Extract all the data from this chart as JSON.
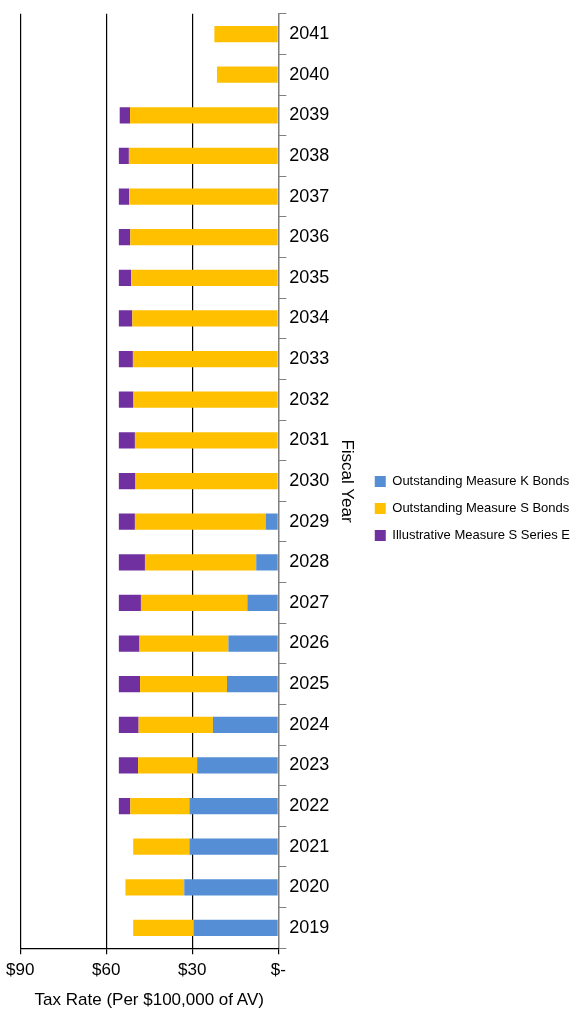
{
  "chart_data": {
    "type": "bar",
    "stacked": true,
    "orientation": "horizontal",
    "xlabel": "Tax Rate (Per $100,000 of AV)",
    "ylabel": "Fiscal Year",
    "categories": [
      "2041",
      "2040",
      "2039",
      "2038",
      "2037",
      "2036",
      "2035",
      "2034",
      "2033",
      "2032",
      "2031",
      "2030",
      "2029",
      "2028",
      "2027",
      "2026",
      "2025",
      "2024",
      "2023",
      "2022",
      "2021",
      "2020",
      "2019"
    ],
    "series": [
      {
        "name": "Outstanding Measure K Bonds",
        "color": "#558ed5",
        "values": [
          null,
          null,
          null,
          null,
          null,
          null,
          null,
          null,
          null,
          null,
          null,
          null,
          4.4,
          7.7,
          10.8,
          17.4,
          17.9,
          22.8,
          28.3,
          31.0,
          31.0,
          32.8,
          29.5
        ]
      },
      {
        "name": "Outstanding Measure S Bonds",
        "color": "#ffc000",
        "values": [
          22.3,
          21.4,
          51.7,
          52.1,
          52.0,
          51.6,
          51.3,
          50.9,
          50.7,
          50.5,
          50.0,
          49.8,
          45.6,
          38.8,
          37.1,
          31.0,
          30.3,
          25.9,
          20.6,
          20.6,
          19.6,
          20.5,
          21.1
        ]
      },
      {
        "name": "Illustrative Measure S Series E",
        "color": "#7030a0",
        "values": [
          null,
          null,
          3.6,
          3.5,
          3.6,
          4.0,
          4.3,
          4.7,
          4.9,
          5.1,
          5.6,
          5.8,
          5.6,
          9.1,
          7.7,
          7.2,
          7.4,
          6.9,
          6.7,
          4.0,
          null,
          null,
          null
        ]
      }
    ],
    "xlim": [
      90,
      0
    ],
    "xticks": [
      {
        "value": 90,
        "label": "$90"
      },
      {
        "value": 60,
        "label": "$60"
      },
      {
        "value": 30,
        "label": "$30"
      },
      {
        "value": 0,
        "label": "$-"
      }
    ],
    "grid": "x",
    "legend": "right"
  }
}
